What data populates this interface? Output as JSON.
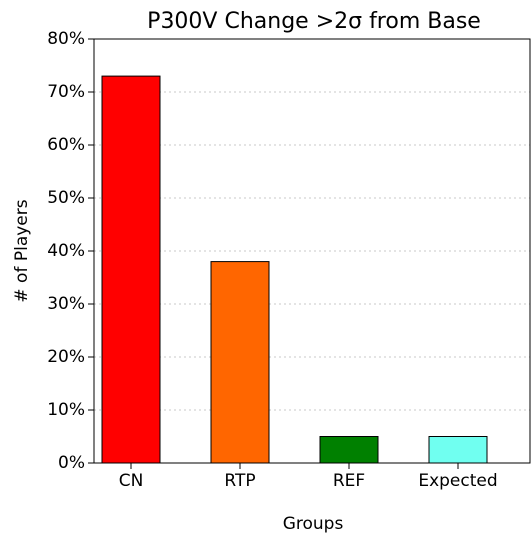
{
  "chart_data": {
    "type": "bar",
    "title": "P300V Change >2σ from Base",
    "xlabel": "Groups",
    "ylabel": "# of Players",
    "categories": [
      "CN",
      "RTP",
      "REF",
      "Expected"
    ],
    "values": [
      73,
      38,
      5,
      5
    ],
    "colors": [
      "#ff0000",
      "#ff6600",
      "#008000",
      "#70fff0"
    ],
    "ylim": [
      0,
      80
    ],
    "yticks": [
      {
        "value": 0,
        "label": "0%"
      },
      {
        "value": 10,
        "label": "10%"
      },
      {
        "value": 20,
        "label": "20%"
      },
      {
        "value": 30,
        "label": "30%"
      },
      {
        "value": 40,
        "label": "40%"
      },
      {
        "value": 50,
        "label": "50%"
      },
      {
        "value": 60,
        "label": "60%"
      },
      {
        "value": 70,
        "label": "70%"
      },
      {
        "value": 80,
        "label": "80%"
      }
    ],
    "grid": true
  }
}
